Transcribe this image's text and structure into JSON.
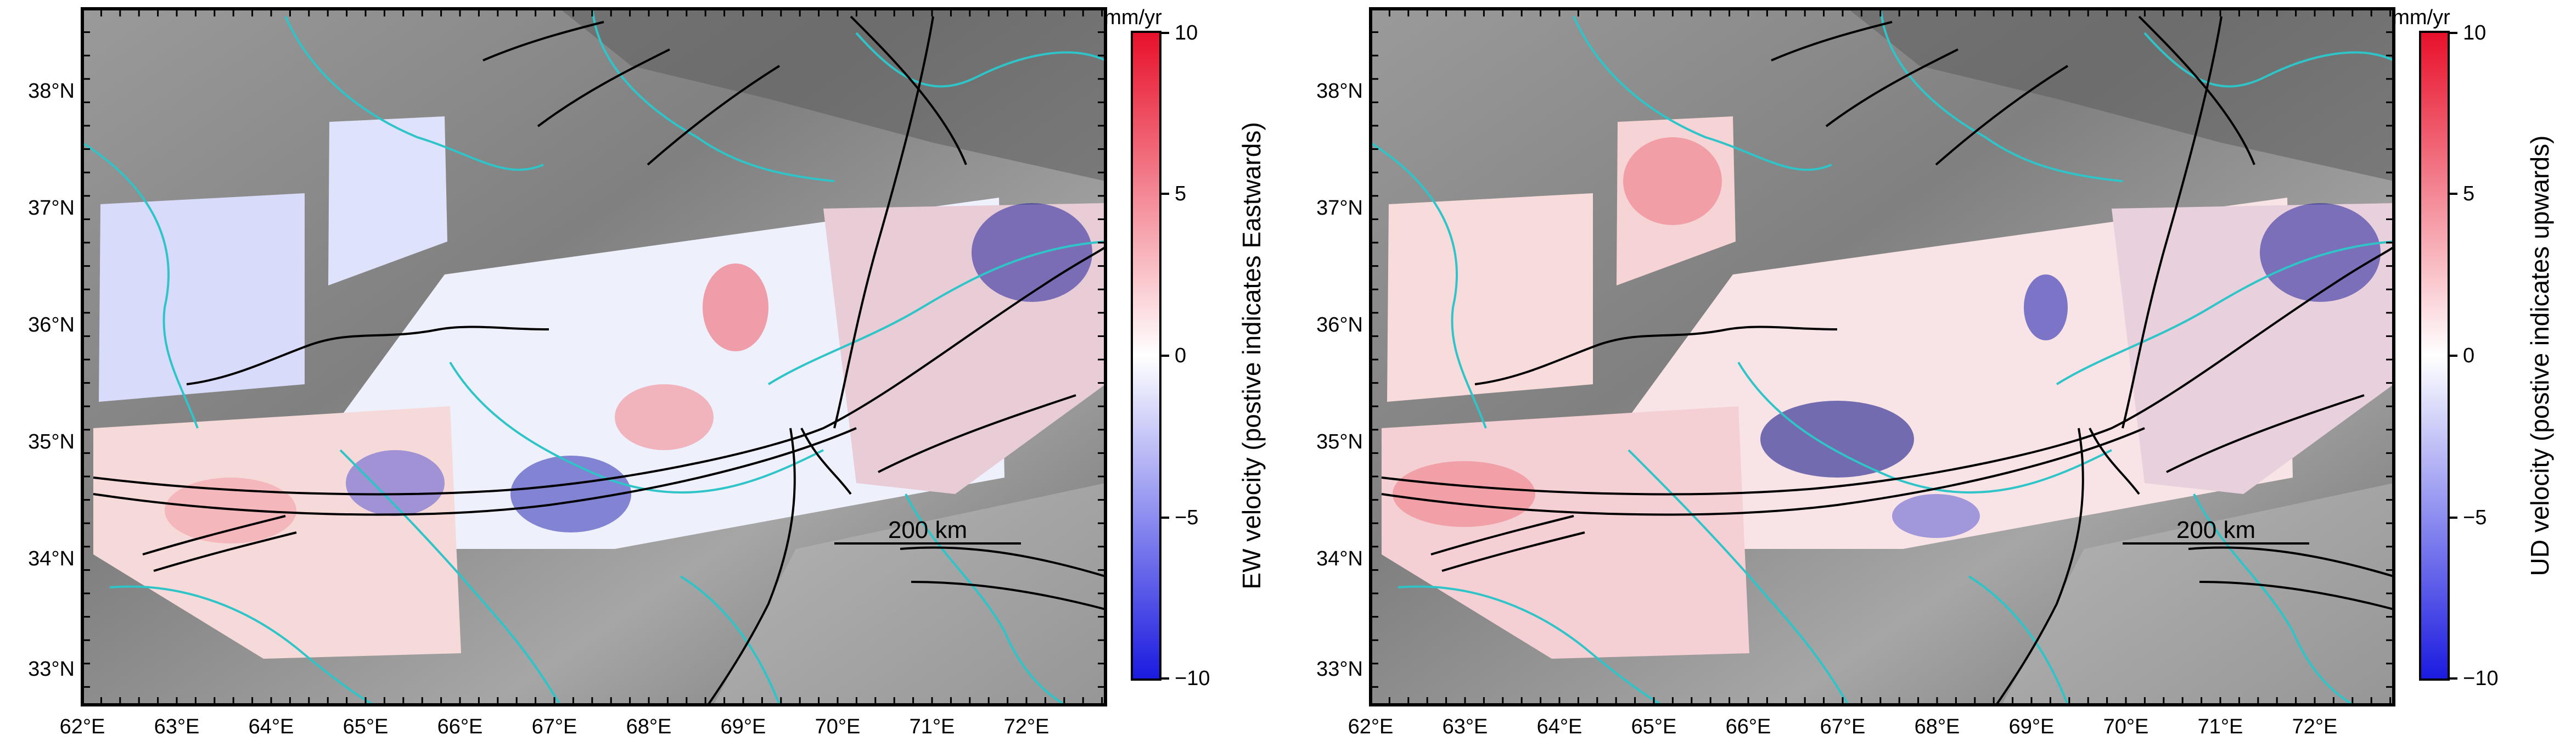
{
  "panels": [
    {
      "id": "ew",
      "colorbar_label": "EW velocity (postive indicates Eastwards)",
      "colorbar_unit": "mm/yr",
      "colorbar_ticks": [
        "10",
        "5",
        "0",
        "−5",
        "−10"
      ],
      "scale_bar_label": "200 km"
    },
    {
      "id": "ud",
      "colorbar_label": "UD velocity (postive indicates upwards)",
      "colorbar_unit": "mm/yr",
      "colorbar_ticks": [
        "10",
        "5",
        "0",
        "−5",
        "−10"
      ],
      "scale_bar_label": "200 km"
    }
  ],
  "map": {
    "lon_labels": [
      "62°E",
      "63°E",
      "64°E",
      "65°E",
      "66°E",
      "67°E",
      "68°E",
      "69°E",
      "70°E",
      "71°E",
      "72°E"
    ],
    "lat_labels": [
      "38°N",
      "37°N",
      "36°N",
      "35°N",
      "34°N",
      "33°N"
    ],
    "lon_range": [
      62.0,
      72.85
    ],
    "lat_range": [
      32.7,
      38.7
    ],
    "colorbar_range": [
      -10,
      10
    ],
    "colors": {
      "positive": "#e8102a",
      "negative": "#1a1ae0",
      "zero": "#ffffff",
      "rivers": "#2ec4c8",
      "faults": "#000000",
      "relief": "#8c8c8c"
    }
  }
}
